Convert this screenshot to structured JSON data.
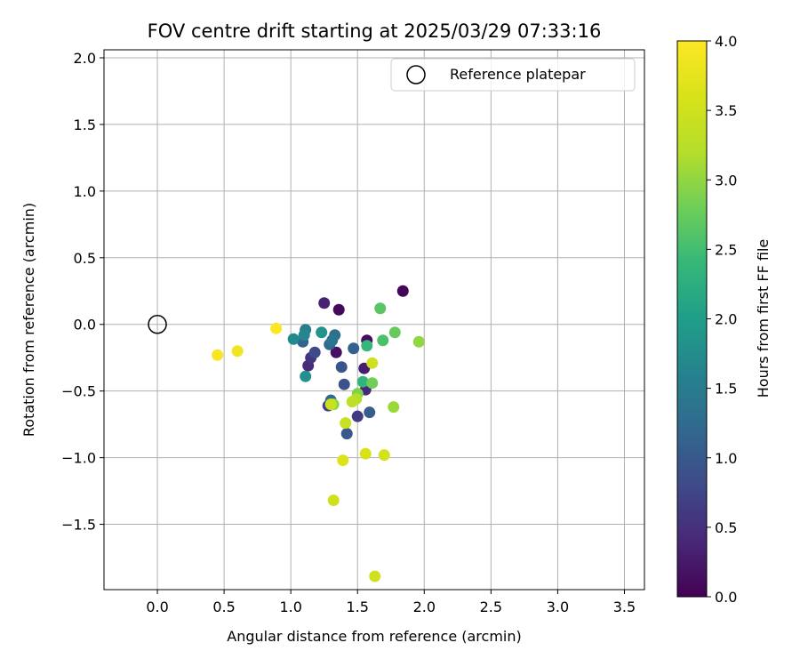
{
  "chart_data": {
    "type": "scatter",
    "title": "FOV centre drift starting at 2025/03/29 07:33:16",
    "xlabel": "Angular distance from reference (arcmin)",
    "ylabel": "Rotation from reference (arcmin)",
    "xlim": [
      -0.4,
      3.65
    ],
    "ylim": [
      -1.99,
      2.06
    ],
    "xticks": [
      0.0,
      0.5,
      1.0,
      1.5,
      2.0,
      2.5,
      3.0,
      3.5
    ],
    "xtick_labels": [
      "0.0",
      "0.5",
      "1.0",
      "1.5",
      "2.0",
      "2.5",
      "3.0",
      "3.5"
    ],
    "yticks": [
      -1.5,
      -1.0,
      -0.5,
      0.0,
      0.5,
      1.0,
      1.5,
      2.0
    ],
    "ytick_labels": [
      "−1.5",
      "−1.0",
      "−0.5",
      "0.0",
      "0.5",
      "1.0",
      "1.5",
      "2.0"
    ],
    "grid": true,
    "legend": {
      "position": "upper-right",
      "entries": [
        "Reference platepar"
      ]
    },
    "reference_point": {
      "x": 0.0,
      "y": 0.0,
      "label": "Reference platepar"
    },
    "colorbar": {
      "label": "Hours from first FF file",
      "colormap": "viridis",
      "range": [
        0.0,
        4.0
      ],
      "ticks": [
        0.0,
        0.5,
        1.0,
        1.5,
        2.0,
        2.5,
        3.0,
        3.5,
        4.0
      ],
      "tick_labels": [
        "0.0",
        "0.5",
        "1.0",
        "1.5",
        "2.0",
        "2.5",
        "3.0",
        "3.5",
        "4.0"
      ]
    },
    "points": [
      {
        "x": 1.84,
        "y": 0.25,
        "h": 0.05
      },
      {
        "x": 1.36,
        "y": 0.11,
        "h": 0.08
      },
      {
        "x": 1.57,
        "y": -0.12,
        "h": 0.12
      },
      {
        "x": 1.34,
        "y": -0.21,
        "h": 0.15
      },
      {
        "x": 1.25,
        "y": 0.16,
        "h": 0.35
      },
      {
        "x": 1.55,
        "y": -0.33,
        "h": 0.3
      },
      {
        "x": 1.13,
        "y": -0.31,
        "h": 0.45
      },
      {
        "x": 1.15,
        "y": -0.25,
        "h": 0.55
      },
      {
        "x": 1.56,
        "y": -0.49,
        "h": 0.4
      },
      {
        "x": 1.5,
        "y": -0.69,
        "h": 0.6
      },
      {
        "x": 1.28,
        "y": -0.61,
        "h": 0.7
      },
      {
        "x": 1.18,
        "y": -0.21,
        "h": 0.8
      },
      {
        "x": 1.38,
        "y": -0.32,
        "h": 0.95
      },
      {
        "x": 1.4,
        "y": -0.45,
        "h": 0.9
      },
      {
        "x": 1.42,
        "y": -0.82,
        "h": 1.0
      },
      {
        "x": 1.59,
        "y": -0.66,
        "h": 1.05
      },
      {
        "x": 1.47,
        "y": -0.18,
        "h": 1.1
      },
      {
        "x": 1.09,
        "y": -0.13,
        "h": 1.15
      },
      {
        "x": 1.3,
        "y": -0.57,
        "h": 1.2
      },
      {
        "x": 1.29,
        "y": -0.15,
        "h": 1.25
      },
      {
        "x": 1.33,
        "y": -0.08,
        "h": 1.3
      },
      {
        "x": 1.31,
        "y": -0.12,
        "h": 1.4
      },
      {
        "x": 1.11,
        "y": -0.04,
        "h": 1.55
      },
      {
        "x": 1.1,
        "y": -0.08,
        "h": 1.65
      },
      {
        "x": 1.02,
        "y": -0.11,
        "h": 1.7
      },
      {
        "x": 1.11,
        "y": -0.39,
        "h": 1.8
      },
      {
        "x": 1.23,
        "y": -0.06,
        "h": 1.85
      },
      {
        "x": 1.54,
        "y": -0.43,
        "h": 2.35
      },
      {
        "x": 1.57,
        "y": -0.16,
        "h": 2.4
      },
      {
        "x": 1.69,
        "y": -0.12,
        "h": 2.55
      },
      {
        "x": 1.67,
        "y": 0.12,
        "h": 2.65
      },
      {
        "x": 1.78,
        "y": -0.06,
        "h": 2.75
      },
      {
        "x": 1.61,
        "y": -0.44,
        "h": 2.8
      },
      {
        "x": 1.5,
        "y": -0.52,
        "h": 2.9
      },
      {
        "x": 1.32,
        "y": -0.6,
        "h": 2.95
      },
      {
        "x": 1.96,
        "y": -0.13,
        "h": 3.0
      },
      {
        "x": 1.77,
        "y": -0.62,
        "h": 3.05
      },
      {
        "x": 1.49,
        "y": -0.56,
        "h": 3.2
      },
      {
        "x": 1.46,
        "y": -0.58,
        "h": 3.3
      },
      {
        "x": 1.41,
        "y": -0.74,
        "h": 3.4
      },
      {
        "x": 1.3,
        "y": -0.6,
        "h": 3.45
      },
      {
        "x": 1.61,
        "y": -0.29,
        "h": 3.5
      },
      {
        "x": 1.56,
        "y": -0.97,
        "h": 3.6
      },
      {
        "x": 1.7,
        "y": -0.98,
        "h": 3.55
      },
      {
        "x": 1.39,
        "y": -1.02,
        "h": 3.65
      },
      {
        "x": 1.32,
        "y": -1.32,
        "h": 3.5
      },
      {
        "x": 1.63,
        "y": -1.89,
        "h": 3.5
      },
      {
        "x": 0.89,
        "y": -0.03,
        "h": 4.0
      },
      {
        "x": 0.6,
        "y": -0.2,
        "h": 3.85
      },
      {
        "x": 0.45,
        "y": -0.23,
        "h": 3.95
      }
    ]
  }
}
